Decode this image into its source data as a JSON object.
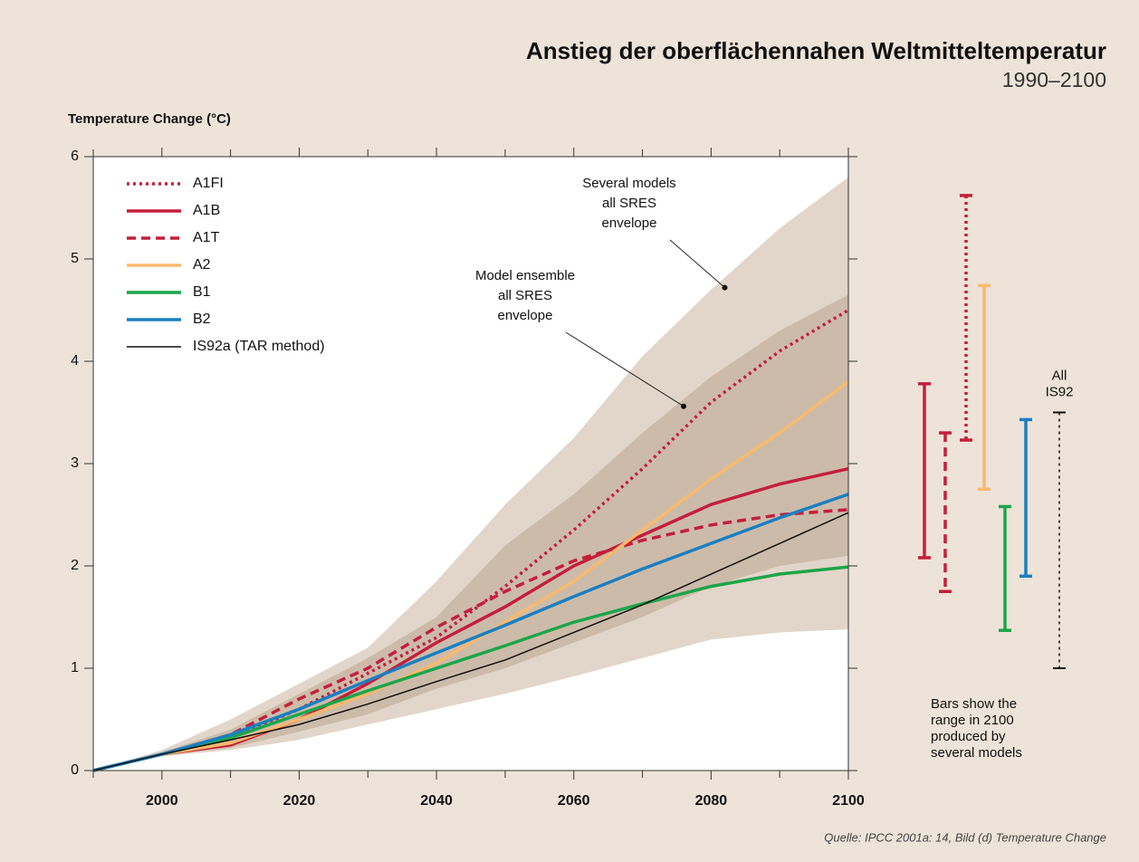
{
  "chart_data": {
    "type": "line",
    "title": "Anstieg der oberflächennahen Weltmitteltemperatur",
    "subtitle": "1990–2100",
    "ylabel": "Temperature Change (°C)",
    "source": "Quelle: IPCC 2001a: 14, Bild (d) Temperature Change",
    "x": [
      1990,
      2000,
      2010,
      2020,
      2030,
      2040,
      2050,
      2060,
      2070,
      2080,
      2090,
      2100
    ],
    "xlim": [
      1990,
      2100
    ],
    "xticks": [
      2000,
      2020,
      2040,
      2060,
      2080,
      2100
    ],
    "xminorticks": [
      1990,
      2010,
      2030,
      2050,
      2070,
      2090
    ],
    "ylim": [
      0,
      6
    ],
    "yticks": [
      0,
      1,
      2,
      3,
      4,
      5,
      6
    ],
    "bands": [
      {
        "color": "#e2d6ca",
        "upper": [
          0,
          0.2,
          0.5,
          0.85,
          1.2,
          1.85,
          2.6,
          3.25,
          4.05,
          4.7,
          5.3,
          5.8
        ],
        "lower": [
          0,
          0.14,
          0.2,
          0.3,
          0.45,
          0.6,
          0.75,
          0.92,
          1.1,
          1.28,
          1.35,
          1.38
        ]
      },
      {
        "color": "#cdbba9",
        "upper": [
          0,
          0.18,
          0.4,
          0.75,
          1.1,
          1.5,
          2.2,
          2.7,
          3.3,
          3.85,
          4.3,
          4.65
        ],
        "lower": [
          0,
          0.15,
          0.22,
          0.38,
          0.55,
          0.8,
          1.0,
          1.25,
          1.5,
          1.8,
          2.0,
          2.1
        ]
      }
    ],
    "annotations": [
      {
        "lines": [
          "Several models",
          "all SRES",
          "envelope"
        ],
        "x": 2082,
        "y": 4.72
      },
      {
        "lines": [
          "Model ensemble",
          "all SRES",
          "envelope"
        ],
        "x": 2076,
        "y": 3.56
      }
    ],
    "series": [
      {
        "name": "A1FI",
        "color": "#c41f3b",
        "dash": "dotted",
        "values": [
          0,
          0.16,
          0.32,
          0.6,
          0.95,
          1.3,
          1.8,
          2.35,
          2.95,
          3.6,
          4.1,
          4.5
        ],
        "range": {
          "low": 3.23,
          "high": 5.62
        }
      },
      {
        "name": "A1B",
        "color": "#c41f3b",
        "dash": "solid",
        "values": [
          0,
          0.16,
          0.25,
          0.5,
          0.85,
          1.25,
          1.6,
          2.0,
          2.3,
          2.6,
          2.8,
          2.95
        ],
        "range": {
          "low": 2.08,
          "high": 3.78
        }
      },
      {
        "name": "A1T",
        "color": "#c41f3b",
        "dash": "dashed",
        "values": [
          0,
          0.16,
          0.35,
          0.7,
          1.0,
          1.4,
          1.75,
          2.05,
          2.25,
          2.4,
          2.5,
          2.55
        ],
        "range": {
          "low": 1.75,
          "high": 3.3
        }
      },
      {
        "name": "A2",
        "color": "#f9b96e",
        "dash": "solid",
        "values": [
          0,
          0.16,
          0.27,
          0.5,
          0.75,
          1.05,
          1.45,
          1.85,
          2.35,
          2.85,
          3.3,
          3.8
        ],
        "range": {
          "low": 2.75,
          "high": 4.74
        }
      },
      {
        "name": "B1",
        "color": "#1aa64a",
        "dash": "solid",
        "values": [
          0,
          0.16,
          0.32,
          0.55,
          0.78,
          1.0,
          1.22,
          1.45,
          1.63,
          1.8,
          1.92,
          1.99
        ],
        "range": {
          "low": 1.37,
          "high": 2.58
        }
      },
      {
        "name": "B2",
        "color": "#1a7fc1",
        "dash": "solid",
        "values": [
          0,
          0.16,
          0.35,
          0.6,
          0.88,
          1.15,
          1.42,
          1.7,
          1.97,
          2.22,
          2.47,
          2.7
        ],
        "range": {
          "low": 1.9,
          "high": 3.43
        }
      },
      {
        "name": "IS92a (TAR method)",
        "color": "#111111",
        "dash": "thin",
        "values": [
          0,
          0.16,
          0.3,
          0.45,
          0.65,
          0.87,
          1.08,
          1.35,
          1.62,
          1.92,
          2.22,
          2.52
        ],
        "range": {
          "low": 1.0,
          "high": 3.5
        },
        "range_label": [
          "All",
          "IS92"
        ]
      }
    ],
    "note": [
      "Bars show the",
      "range in 2100",
      "produced by",
      "several models"
    ]
  }
}
